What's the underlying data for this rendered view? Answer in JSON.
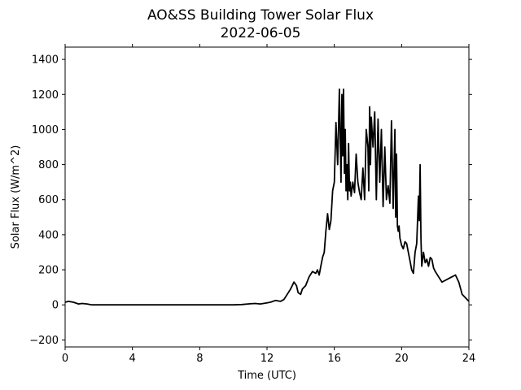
{
  "chart_data": {
    "type": "line",
    "title": "AO&SS Building Tower Solar Flux",
    "subtitle": "2022-06-05",
    "xlabel": "Time (UTC)",
    "ylabel": "Solar Flux (W/m^2)",
    "xlim": [
      0,
      24
    ],
    "ylim": [
      -240,
      1470
    ],
    "xticks": [
      0,
      4,
      8,
      12,
      16,
      20,
      24
    ],
    "xtick_labels": [
      "0",
      "4",
      "8",
      "12",
      "16",
      "20",
      "24"
    ],
    "yticks": [
      -200,
      0,
      200,
      400,
      600,
      800,
      1000,
      1200,
      1400
    ],
    "ytick_labels": [
      "−200",
      "0",
      "200",
      "400",
      "600",
      "800",
      "1000",
      "1200",
      "1400"
    ],
    "grid": false,
    "line_color": "#000000",
    "series": [
      {
        "x": [
          0,
          0.2,
          0.5,
          0.8,
          1.0,
          1.3,
          1.6,
          2.0,
          4,
          6,
          8,
          10,
          10.5,
          11.0,
          11.3,
          11.6,
          11.9,
          12.2,
          12.5,
          12.8,
          13.0,
          13.2,
          13.4,
          13.6,
          13.75,
          13.85,
          14.0,
          14.1,
          14.3,
          14.5,
          14.7,
          14.9,
          15.0,
          15.1,
          15.2,
          15.3,
          15.4,
          15.5,
          15.6,
          15.7,
          15.8,
          15.9,
          16.0,
          16.1,
          16.2,
          16.3,
          16.4,
          16.45,
          16.5,
          16.55,
          16.6,
          16.65,
          16.7,
          16.75,
          16.8,
          16.85,
          16.9,
          16.95,
          17.0,
          17.1,
          17.2,
          17.3,
          17.4,
          17.5,
          17.6,
          17.7,
          17.8,
          17.9,
          18.0,
          18.05,
          18.1,
          18.15,
          18.2,
          18.3,
          18.4,
          18.5,
          18.6,
          18.7,
          18.8,
          18.9,
          19.0,
          19.1,
          19.2,
          19.3,
          19.4,
          19.5,
          19.6,
          19.65,
          19.7,
          19.75,
          19.8,
          19.85,
          19.9,
          20.0,
          20.1,
          20.2,
          20.3,
          20.4,
          20.5,
          20.6,
          20.7,
          20.8,
          20.9,
          21.0,
          21.05,
          21.1,
          21.15,
          21.2,
          21.3,
          21.4,
          21.5,
          21.6,
          21.7,
          21.8,
          21.9,
          22.0,
          22.2,
          22.4,
          22.6,
          22.8,
          23.0,
          23.2,
          23.4,
          23.6,
          23.8,
          24.0
        ],
        "y": [
          15,
          20,
          15,
          5,
          8,
          5,
          0,
          0,
          0,
          0,
          0,
          0,
          2,
          6,
          8,
          5,
          10,
          15,
          25,
          20,
          30,
          60,
          90,
          130,
          110,
          70,
          60,
          90,
          110,
          160,
          190,
          180,
          200,
          170,
          220,
          270,
          300,
          420,
          520,
          430,
          480,
          650,
          700,
          1040,
          800,
          1230,
          700,
          1200,
          850,
          1230,
          750,
          1000,
          650,
          800,
          600,
          920,
          650,
          700,
          620,
          700,
          640,
          860,
          700,
          640,
          600,
          780,
          600,
          1000,
          900,
          650,
          1130,
          800,
          1070,
          900,
          1100,
          600,
          1060,
          700,
          1000,
          560,
          900,
          600,
          680,
          580,
          1050,
          550,
          1000,
          500,
          860,
          450,
          420,
          450,
          380,
          340,
          320,
          360,
          350,
          300,
          250,
          200,
          180,
          300,
          350,
          620,
          480,
          800,
          380,
          220,
          300,
          240,
          260,
          220,
          270,
          260,
          210,
          190,
          160,
          130,
          140,
          150,
          160,
          170,
          130,
          60,
          40,
          20
        ]
      }
    ]
  }
}
